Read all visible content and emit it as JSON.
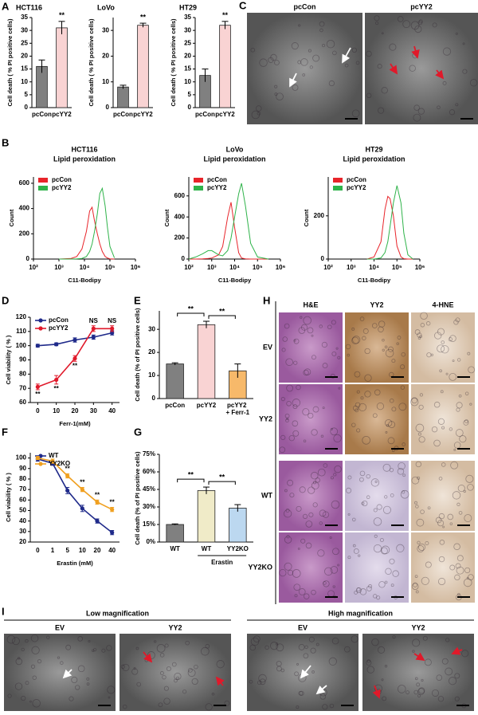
{
  "panel_letters": [
    "A",
    "B",
    "C",
    "D",
    "E",
    "F",
    "G",
    "H",
    "I"
  ],
  "panel_c": {
    "columns": [
      "pcCon",
      "pcYY2"
    ]
  },
  "panel_h": {
    "columns": [
      "H&E",
      "YY2",
      "4-HNE"
    ],
    "rows": [
      "EV",
      "YY2",
      "WT",
      "YY2KO"
    ]
  },
  "panel_i": {
    "groups": [
      {
        "title": "Low magnification",
        "columns": [
          "EV",
          "YY2"
        ]
      },
      {
        "title": "High magnification",
        "columns": [
          "EV",
          "YY2"
        ]
      }
    ]
  },
  "chart_data": [
    {
      "type": "bar",
      "title": "HCT116",
      "ylabel": "Cell death ( % PI positive cells)",
      "categories": [
        "pcCon",
        "pcYY2"
      ],
      "values": [
        16,
        31
      ],
      "errors": [
        2.5,
        2.5
      ],
      "colors": [
        "#808080",
        "#f9d3d3"
      ],
      "annotations": [
        null,
        "**"
      ],
      "ylim": [
        0,
        35
      ],
      "yticks": [
        0,
        5,
        10,
        15,
        20,
        25,
        30,
        35
      ]
    },
    {
      "type": "bar",
      "title": "LoVo",
      "ylabel": "Cell death ( % PI positive cells)",
      "categories": [
        "pcCon",
        "pcYY2"
      ],
      "values": [
        8,
        32
      ],
      "errors": [
        0.7,
        0.8
      ],
      "colors": [
        "#808080",
        "#f9d3d3"
      ],
      "annotations": [
        null,
        "**"
      ],
      "ylim": [
        0,
        35
      ],
      "yticks": [
        0,
        10,
        20,
        30
      ]
    },
    {
      "type": "bar",
      "title": "HT29",
      "ylabel": "Cell death ( % PI positive cells)",
      "categories": [
        "pcCon",
        "pcYY2"
      ],
      "values": [
        12.5,
        32
      ],
      "errors": [
        2.5,
        1.5
      ],
      "colors": [
        "#808080",
        "#f9d3d3"
      ],
      "annotations": [
        null,
        "**"
      ],
      "ylim": [
        0,
        35
      ],
      "yticks": [
        0,
        5,
        10,
        15,
        20,
        25,
        30,
        35
      ]
    },
    {
      "type": "line",
      "title": "HCT116",
      "subtitle": "Lipid peroxidation",
      "xlabel": "C11-Bodipy",
      "ylabel": "Count",
      "xscale": "log",
      "legend": "upper left",
      "x": [
        1000,
        3000,
        5000,
        8000,
        12000,
        16000,
        20000,
        25000,
        32000,
        40000,
        50000,
        65000,
        80000,
        100000,
        150000
      ],
      "xlim": [
        100,
        1000000
      ],
      "xticks": [
        {
          "value": 100,
          "label": "10²"
        },
        {
          "value": 1000,
          "label": "10³"
        },
        {
          "value": 10000,
          "label": "10⁴"
        },
        {
          "value": 100000,
          "label": "10⁵"
        },
        {
          "value": 1000000,
          "label": "10⁶"
        }
      ],
      "ylim": [
        0,
        650
      ],
      "yticks": [
        0,
        200,
        400,
        600
      ],
      "series": [
        {
          "name": "pcCon",
          "color": "#e8242a",
          "values": [
            0,
            5,
            20,
            80,
            220,
            380,
            410,
            300,
            200,
            120,
            60,
            20,
            8,
            2,
            0
          ]
        },
        {
          "name": "pcYY2",
          "color": "#2fb34a",
          "values": [
            0,
            0,
            2,
            5,
            20,
            60,
            120,
            220,
            360,
            520,
            560,
            420,
            250,
            100,
            10
          ]
        }
      ]
    },
    {
      "type": "line",
      "title": "LoVo",
      "subtitle": "Lipid peroxidation",
      "xlabel": "C11-Bodipy",
      "ylabel": "Count",
      "xscale": "log",
      "legend": "upper left",
      "x": [
        100,
        200,
        400,
        700,
        1000,
        2000,
        3000,
        5000,
        7000,
        10000,
        15000,
        20000,
        30000,
        50000,
        100000,
        300000
      ],
      "xlim": [
        100,
        1000000
      ],
      "xticks": [
        {
          "value": 100,
          "label": "10²"
        },
        {
          "value": 1000,
          "label": "10³"
        },
        {
          "value": 10000,
          "label": "10⁴"
        },
        {
          "value": 100000,
          "label": "10⁵"
        },
        {
          "value": 1000000,
          "label": "10⁶"
        }
      ],
      "ylim": [
        0,
        780
      ],
      "yticks": [
        0,
        200,
        400,
        600
      ],
      "series": [
        {
          "name": "pcCon",
          "color": "#e8242a",
          "values": [
            0,
            0,
            2,
            5,
            10,
            40,
            120,
            400,
            540,
            300,
            60,
            10,
            2,
            0,
            0,
            0
          ]
        },
        {
          "name": "pcYY2",
          "color": "#2fb34a",
          "values": [
            0,
            20,
            50,
            80,
            80,
            40,
            30,
            80,
            200,
            400,
            620,
            720,
            500,
            150,
            20,
            0
          ]
        }
      ]
    },
    {
      "type": "line",
      "title": "HT29",
      "subtitle": "Lipid peroxidation",
      "xlabel": "C11-Bodipy",
      "ylabel": "Count",
      "xscale": "log",
      "legend": "upper left",
      "x": [
        5000,
        10000,
        20000,
        30000,
        40000,
        50000,
        70000,
        100000,
        150000,
        200000,
        300000,
        500000
      ],
      "xlim": [
        100,
        1000000
      ],
      "xticks": [
        {
          "value": 100,
          "label": "10²"
        },
        {
          "value": 1000,
          "label": "10³"
        },
        {
          "value": 10000,
          "label": "10⁴"
        },
        {
          "value": 100000,
          "label": "10⁵"
        },
        {
          "value": 1000000,
          "label": "10⁶"
        }
      ],
      "ylim": [
        0,
        380
      ],
      "yticks": [
        0,
        200
      ],
      "series": [
        {
          "name": "pcCon",
          "color": "#e8242a",
          "values": [
            0,
            10,
            80,
            230,
            290,
            280,
            200,
            60,
            10,
            2,
            0,
            0
          ]
        },
        {
          "name": "pcYY2",
          "color": "#2fb34a",
          "values": [
            0,
            0,
            5,
            30,
            80,
            150,
            260,
            340,
            260,
            120,
            20,
            0
          ]
        }
      ]
    },
    {
      "type": "line",
      "xlabel": "Ferr-1(mM)",
      "ylabel": "Cell viability ( % )",
      "markers": true,
      "legend": "upper left",
      "x": [
        0,
        10,
        20,
        30,
        40
      ],
      "xlim": [
        -4,
        44
      ],
      "xticks": [
        0,
        10,
        20,
        30,
        40
      ],
      "ylim": [
        60,
        120
      ],
      "yticks": [
        60,
        70,
        80,
        90,
        100,
        110,
        120
      ],
      "series": [
        {
          "name": "pcCon",
          "color": "#1f2a8a",
          "values": [
            100,
            101,
            104,
            106,
            109
          ],
          "errors": [
            1,
            1,
            1.5,
            1.5,
            1.5
          ]
        },
        {
          "name": "pcYY2",
          "color": "#e0192a",
          "values": [
            71,
            76,
            91,
            112,
            112
          ],
          "errors": [
            2,
            3,
            2,
            2,
            2
          ],
          "annotations": [
            "**",
            "**",
            "**",
            "NS",
            "NS"
          ]
        }
      ]
    },
    {
      "type": "bar",
      "ylabel": "Cell death (% of PI positive cells)",
      "categories": [
        "pcCon",
        "pcYY2",
        "pcYY2 + Ferr-1"
      ],
      "values": [
        15,
        32,
        12
      ],
      "errors": [
        0.5,
        1.5,
        3
      ],
      "colors": [
        "#808080",
        "#f9d3d3",
        "#f7b96a"
      ],
      "significance": [
        "**",
        "**"
      ],
      "ylim": [
        0,
        38
      ],
      "yticks": [
        0,
        10,
        20,
        30
      ]
    },
    {
      "type": "line",
      "xlabel": "Erastin (mM)",
      "ylabel": "Cell viability ( % )",
      "markers": true,
      "legend": "upper left",
      "categories": [
        "0",
        "1",
        "5",
        "10",
        "20",
        "40"
      ],
      "ylim": [
        20,
        105
      ],
      "yticks": [
        20,
        30,
        40,
        50,
        60,
        70,
        80,
        90,
        100
      ],
      "series": [
        {
          "name": "WT",
          "color": "#1f2a8a",
          "values": [
            99,
            95,
            69,
            52,
            40,
            29
          ],
          "errors": [
            2,
            2,
            3,
            3,
            2,
            2
          ]
        },
        {
          "name": "YY2KO",
          "color": "#f0a020",
          "values": [
            100,
            97,
            83,
            70,
            58,
            51
          ],
          "errors": [
            1.5,
            2,
            2,
            2,
            2,
            2
          ],
          "annotations": [
            null,
            null,
            "**",
            "**",
            "**",
            "**"
          ]
        }
      ]
    },
    {
      "type": "bar",
      "ylabel": "Cell death (% of PI positive cells)",
      "categories": [
        "WT",
        "WT",
        "YY2KO"
      ],
      "group_label": "Erastin",
      "values": [
        15,
        44,
        29
      ],
      "errors": [
        0.5,
        3,
        3
      ],
      "colors": [
        "#808080",
        "#f0ebc8",
        "#bcd8f0"
      ],
      "significance": [
        "**",
        "**"
      ],
      "ylim": [
        0,
        75
      ],
      "yticks": [
        {
          "value": 0,
          "label": "0%"
        },
        {
          "value": 15,
          "label": "15%"
        },
        {
          "value": 30,
          "label": "30%"
        },
        {
          "value": 45,
          "label": "45%"
        },
        {
          "value": 60,
          "label": "60%"
        },
        {
          "value": 75,
          "label": "75%"
        }
      ]
    }
  ]
}
